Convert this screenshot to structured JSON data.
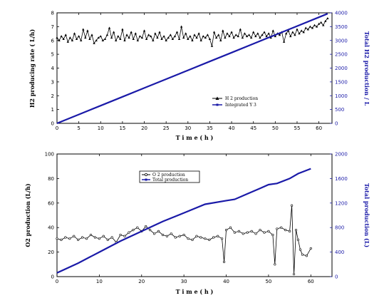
{
  "chart_data": [
    {
      "type": "line",
      "x_label": "T i m e   ( h )",
      "y_label_left": "H2 producing rate ( L/h)",
      "y_label_right": "Total H2 production / L",
      "xlim": [
        0,
        63
      ],
      "ylim_left": [
        0,
        8
      ],
      "ylim_right": [
        0,
        4000
      ],
      "x_ticks": [
        "0",
        "5",
        "10",
        "15",
        "20",
        "25",
        "30",
        "35",
        "40",
        "45",
        "50",
        "55",
        "60"
      ],
      "y_ticks_left": [
        "0",
        "1",
        "2",
        "3",
        "4",
        "5",
        "6",
        "7",
        "8"
      ],
      "y_ticks_right": [
        "0",
        "500",
        "1000",
        "1500",
        "2000",
        "2500",
        "3000",
        "3500",
        "4000"
      ],
      "legend": [
        "H 2 production",
        "Integrated  Y 3"
      ],
      "legend_position": "lower-right",
      "series": [
        {
          "name": "H 2 production",
          "axis": "left",
          "color": "#000000",
          "marker": "triangle",
          "x": [
            0,
            0.5,
            1,
            1.5,
            2,
            2.5,
            3,
            3.5,
            4,
            4.5,
            5,
            5.5,
            6,
            6.5,
            7,
            7.5,
            8,
            8.5,
            9,
            9.5,
            10,
            10.5,
            11,
            11.5,
            12,
            12.5,
            13,
            13.5,
            14,
            14.5,
            15,
            15.5,
            16,
            16.5,
            17,
            17.5,
            18,
            18.5,
            19,
            19.5,
            20,
            20.5,
            21,
            21.5,
            22,
            22.5,
            23,
            23.5,
            24,
            24.5,
            25,
            25.5,
            26,
            26.5,
            27,
            27.5,
            28,
            28.5,
            29,
            29.5,
            30,
            30.5,
            31,
            31.5,
            32,
            32.5,
            33,
            33.5,
            34,
            34.5,
            35,
            35.5,
            36,
            36.5,
            37,
            37.5,
            38,
            38.5,
            39,
            39.5,
            40,
            40.5,
            41,
            41.5,
            42,
            42.5,
            43,
            43.5,
            44,
            44.5,
            45,
            45.5,
            46,
            46.5,
            47,
            47.5,
            48,
            48.5,
            49,
            49.5,
            50,
            50.5,
            51,
            51.5,
            52,
            52.5,
            53,
            53.5,
            54,
            54.5,
            55,
            55.5,
            56,
            56.5,
            57,
            57.5,
            58,
            58.5,
            59,
            59.5,
            60,
            60.5,
            61,
            61.5,
            62
          ],
          "y": [
            6.2,
            6.0,
            6.3,
            6.1,
            6.4,
            5.9,
            6.2,
            6.0,
            6.5,
            6.1,
            6.3,
            6.0,
            6.8,
            6.2,
            6.7,
            6.1,
            6.4,
            5.8,
            6.0,
            6.2,
            6.3,
            6.0,
            6.1,
            6.4,
            6.9,
            6.2,
            6.6,
            6.0,
            6.3,
            6.1,
            6.8,
            6.0,
            6.4,
            6.2,
            6.6,
            6.1,
            6.5,
            6.0,
            6.3,
            6.2,
            6.7,
            6.1,
            6.4,
            6.3,
            6.0,
            6.5,
            6.2,
            6.6,
            6.1,
            6.3,
            6.0,
            6.2,
            6.4,
            6.1,
            6.3,
            6.6,
            6.1,
            7.0,
            6.2,
            6.5,
            6.1,
            6.3,
            6.0,
            6.4,
            6.2,
            6.5,
            6.0,
            6.3,
            6.2,
            6.4,
            6.1,
            5.6,
            6.6,
            6.2,
            6.4,
            6.0,
            6.7,
            6.2,
            6.5,
            6.3,
            6.6,
            6.2,
            6.4,
            6.3,
            6.8,
            6.2,
            6.5,
            6.3,
            6.4,
            6.2,
            6.6,
            6.3,
            6.5,
            6.2,
            6.4,
            6.6,
            6.3,
            6.5,
            6.2,
            6.7,
            6.3,
            6.5,
            6.4,
            6.6,
            5.9,
            6.5,
            6.7,
            6.3,
            6.6,
            6.4,
            6.8,
            6.5,
            6.7,
            6.6,
            6.9,
            6.8,
            7.0,
            6.9,
            7.1,
            7.0,
            7.2,
            7.3,
            7.1,
            7.4,
            7.6
          ]
        },
        {
          "name": "Integrated  Y 3",
          "axis": "right",
          "color": "#1a1aa8",
          "marker": "square",
          "x": [
            0,
            5,
            10,
            15,
            20,
            25,
            30,
            35,
            40,
            45,
            50,
            55,
            60,
            62
          ],
          "y": [
            0,
            320,
            640,
            960,
            1280,
            1600,
            1920,
            2240,
            2560,
            2880,
            3200,
            3520,
            3840,
            3970
          ]
        }
      ]
    },
    {
      "type": "line",
      "x_label": "T i m e   ( h )",
      "y_label_left": "O2 production (L/h)",
      "y_label_right": "Total production (L)",
      "xlim": [
        0,
        65
      ],
      "ylim_left": [
        0,
        100
      ],
      "ylim_right": [
        0,
        2000
      ],
      "x_ticks": [
        "0",
        "10",
        "20",
        "30",
        "40",
        "50",
        "60"
      ],
      "y_ticks_left": [
        "0",
        "20",
        "40",
        "60",
        "80",
        "100"
      ],
      "y_ticks_right": [
        "0",
        "400",
        "800",
        "1200",
        "1600",
        "2000"
      ],
      "legend": [
        "O 2 production",
        "Total production"
      ],
      "legend_position": "upper-left",
      "series": [
        {
          "name": "O 2 production",
          "axis": "left",
          "color": "#000000",
          "marker": "circle",
          "x": [
            0,
            1,
            2,
            3,
            4,
            5,
            6,
            7,
            8,
            9,
            10,
            11,
            12,
            13,
            14,
            15,
            16,
            17,
            18,
            19,
            20,
            21,
            22,
            23,
            24,
            25,
            26,
            27,
            28,
            29,
            30,
            31,
            32,
            33,
            34,
            35,
            36,
            37,
            38,
            39,
            39.5,
            40,
            41,
            42,
            43,
            44,
            45,
            46,
            47,
            48,
            49,
            50,
            51,
            51.5,
            52,
            53,
            54,
            55,
            55.5,
            56,
            56.5,
            57,
            57.5,
            58,
            59,
            60
          ],
          "y": [
            31,
            30,
            32,
            31,
            33,
            30,
            32,
            31,
            34,
            32,
            31,
            33,
            30,
            32,
            28,
            34,
            33,
            36,
            38,
            40,
            37,
            41,
            38,
            35,
            37,
            34,
            33,
            35,
            32,
            33,
            34,
            31,
            30,
            33,
            32,
            31,
            30,
            32,
            33,
            31,
            12,
            38,
            40,
            36,
            37,
            35,
            36,
            37,
            35,
            38,
            36,
            37,
            34,
            10,
            39,
            40,
            38,
            37,
            58,
            2,
            38,
            30,
            22,
            18,
            17,
            23
          ]
        },
        {
          "name": "Total production",
          "axis": "right",
          "color": "#1a1aa8",
          "marker": "square",
          "x": [
            0,
            5,
            10,
            15,
            20,
            25,
            30,
            35,
            40,
            42,
            45,
            48,
            50,
            52,
            55,
            57,
            60
          ],
          "y": [
            60,
            220,
            400,
            580,
            740,
            900,
            1040,
            1180,
            1240,
            1260,
            1350,
            1440,
            1500,
            1520,
            1600,
            1680,
            1760
          ]
        }
      ]
    }
  ]
}
